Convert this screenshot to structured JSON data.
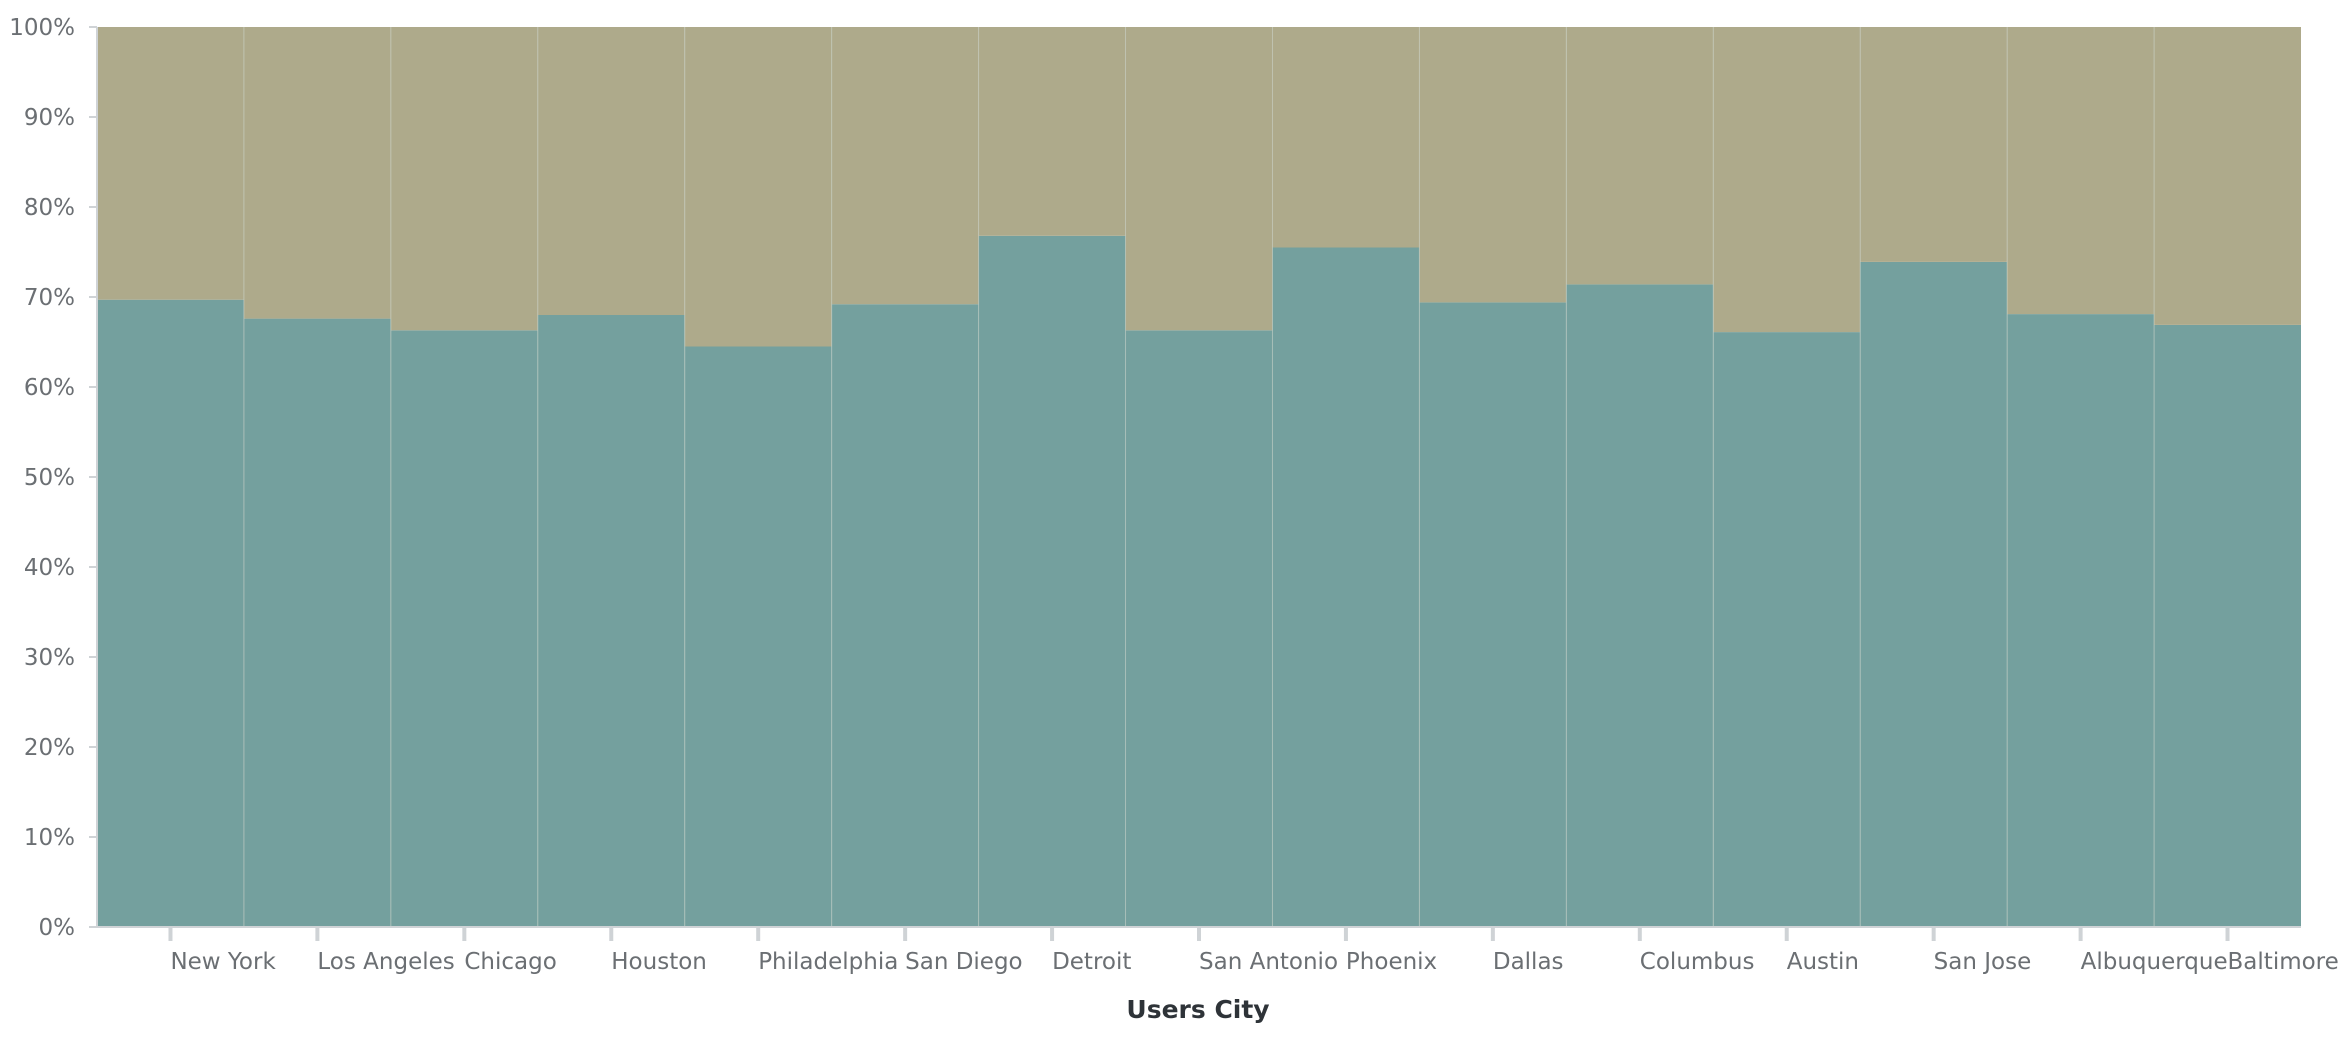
{
  "chart_data": {
    "type": "bar",
    "stacked": true,
    "normalized": true,
    "title": "",
    "xlabel": "Users City",
    "ylabel": "",
    "ylim": [
      0,
      100
    ],
    "yticks": [
      "0%",
      "10%",
      "20%",
      "30%",
      "40%",
      "50%",
      "60%",
      "70%",
      "80%",
      "90%",
      "100%"
    ],
    "grid": false,
    "legend": "none",
    "categories": [
      "New York",
      "Los Angeles",
      "Chicago",
      "Houston",
      "Philadelphia",
      "San Diego",
      "Detroit",
      "San Antonio",
      "Phoenix",
      "Dallas",
      "Columbus",
      "Austin",
      "San Jose",
      "Albuquerque",
      "Baltimore"
    ],
    "series": [
      {
        "color": "#74a09e",
        "values": [
          69.7,
          67.6,
          66.3,
          68.0,
          64.5,
          69.2,
          76.8,
          66.3,
          75.5,
          69.4,
          71.4,
          66.1,
          73.9,
          68.1,
          66.9
        ]
      },
      {
        "color": "#aeaa8b",
        "values": [
          30.3,
          32.4,
          33.7,
          32.0,
          35.5,
          30.8,
          23.2,
          33.7,
          24.5,
          30.6,
          28.6,
          33.9,
          26.1,
          31.9,
          33.1
        ]
      }
    ]
  }
}
